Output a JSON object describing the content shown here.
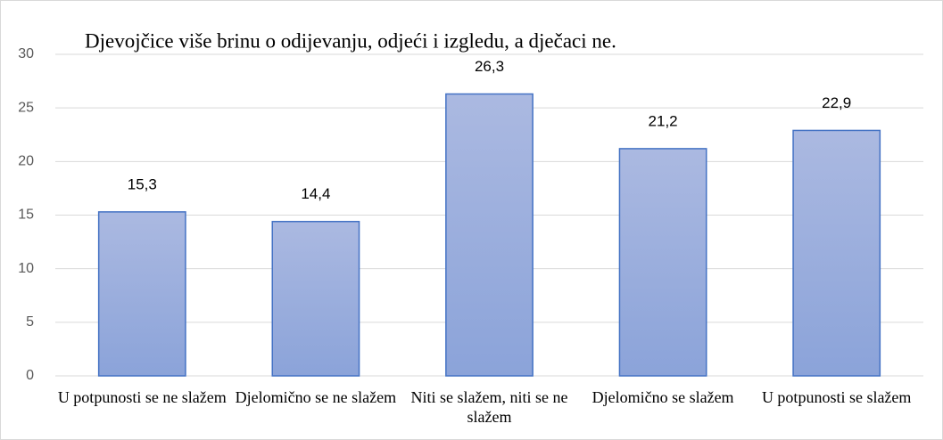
{
  "chart_data": {
    "type": "bar",
    "title": "Djevojčice više brinu o odijevanju, odjeći i izgledu, a dječaci ne.",
    "categories": [
      "U potpunosti se ne slažem",
      "Djelomično se ne slažem",
      "Niti se slažem, niti se ne slažem",
      "Djelomično se slažem",
      "U potpunosti se slažem"
    ],
    "values": [
      15.3,
      14.4,
      26.3,
      21.2,
      22.9
    ],
    "value_labels": [
      "15,3",
      "14,4",
      "26,3",
      "21,2",
      "22,9"
    ],
    "color": "#4472c4",
    "ylim": [
      0,
      30
    ],
    "yticks": [
      0,
      5,
      10,
      15,
      20,
      25,
      30
    ],
    "grid": true
  }
}
